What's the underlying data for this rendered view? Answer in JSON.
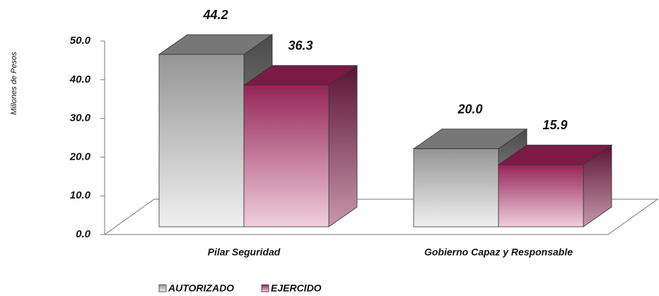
{
  "chart_data": {
    "type": "bar3d",
    "y_label": "Millones de Pesos",
    "categories": [
      "Pilar Seguridad",
      "Gobierno Capaz y Responsable"
    ],
    "series": [
      {
        "name": "AUTORIZADO",
        "color": "#9a9a9a",
        "values": [
          44.2,
          20.0
        ],
        "value_labels": [
          "44.2",
          "20.0"
        ]
      },
      {
        "name": "EJERCIDO",
        "color": "#9b2a5e",
        "values": [
          36.3,
          15.9
        ],
        "value_labels": [
          "36.3",
          "15.9"
        ]
      }
    ],
    "ylim": [
      0,
      50
    ],
    "yticks": [
      {
        "value": 0,
        "label": "0.0"
      },
      {
        "value": 10,
        "label": "10.0"
      },
      {
        "value": 20,
        "label": "20.0"
      },
      {
        "value": 30,
        "label": "30.0"
      },
      {
        "value": 40,
        "label": "40.0"
      },
      {
        "value": 50,
        "label": "50.0"
      }
    ]
  }
}
